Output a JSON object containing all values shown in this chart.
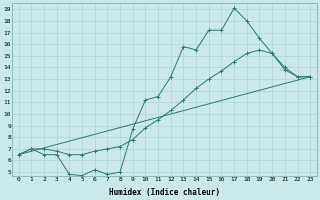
{
  "xlabel": "Humidex (Indice chaleur)",
  "background_color": "#cce9e9",
  "line_color": "#2d7a6e",
  "grid_color": "#aed4d4",
  "xlim": [
    -0.5,
    23.5
  ],
  "ylim": [
    4.7,
    19.5
  ],
  "xticks": [
    0,
    1,
    2,
    3,
    4,
    5,
    6,
    7,
    8,
    9,
    10,
    11,
    12,
    13,
    14,
    15,
    16,
    17,
    18,
    19,
    20,
    21,
    22,
    23
  ],
  "yticks": [
    5,
    6,
    7,
    8,
    9,
    10,
    11,
    12,
    13,
    14,
    15,
    16,
    17,
    18,
    19
  ],
  "line1_x": [
    0,
    1,
    2,
    3,
    4,
    5,
    6,
    7,
    8,
    9,
    10,
    11,
    12,
    13,
    14,
    15,
    16,
    17,
    18,
    19,
    20,
    21,
    22,
    23
  ],
  "line1_y": [
    6.5,
    7.0,
    6.5,
    6.5,
    4.8,
    4.7,
    5.2,
    4.8,
    5.0,
    8.7,
    11.2,
    11.5,
    13.2,
    15.8,
    15.5,
    17.2,
    17.2,
    19.1,
    18.0,
    16.5,
    15.2,
    14.0,
    13.2,
    13.2
  ],
  "line2_x": [
    0,
    1,
    2,
    3,
    4,
    5,
    6,
    7,
    8,
    9,
    10,
    11,
    12,
    13,
    14,
    15,
    16,
    17,
    18,
    19,
    20,
    21,
    22,
    23
  ],
  "line2_y": [
    6.5,
    7.0,
    7.0,
    6.8,
    6.5,
    6.5,
    6.8,
    7.0,
    7.2,
    7.8,
    8.8,
    9.5,
    10.3,
    11.2,
    12.2,
    13.0,
    13.7,
    14.5,
    15.2,
    15.5,
    15.2,
    13.8,
    13.2,
    13.2
  ],
  "line3_x": [
    0,
    23
  ],
  "line3_y": [
    6.5,
    13.2
  ]
}
